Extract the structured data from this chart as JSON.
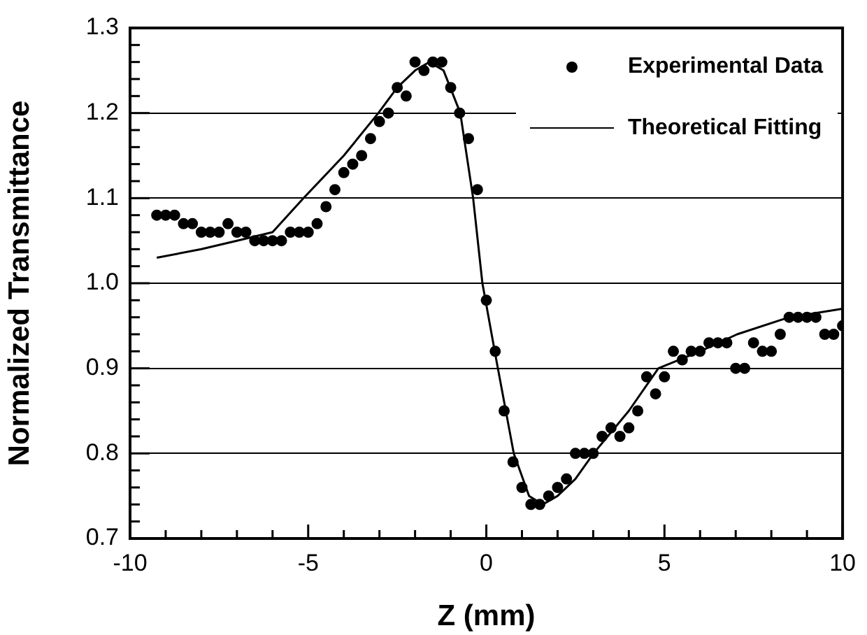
{
  "chart_data": {
    "type": "scatter",
    "xlabel": "Z (mm)",
    "ylabel": "Normalized Transmittance",
    "xlim": [
      -10,
      10
    ],
    "ylim": [
      0.7,
      1.3
    ],
    "xticks": [
      -10,
      {
        "value": -9,
        "label": null
      },
      {
        "value": -8,
        "label": null
      },
      {
        "value": -7,
        "label": null
      },
      {
        "value": -6,
        "label": null
      },
      -5,
      {
        "value": -4,
        "label": null
      },
      {
        "value": -3,
        "label": null
      },
      {
        "value": -2,
        "label": null
      },
      {
        "value": -1,
        "label": null
      },
      0,
      {
        "value": 1,
        "label": null
      },
      {
        "value": 2,
        "label": null
      },
      {
        "value": 3,
        "label": null
      },
      {
        "value": 4,
        "label": null
      },
      5,
      {
        "value": 6,
        "label": null
      },
      {
        "value": 7,
        "label": null
      },
      {
        "value": 8,
        "label": null
      },
      {
        "value": 9,
        "label": null
      },
      10
    ],
    "yticks": [
      {
        "value": 0.7,
        "label": "0.7"
      },
      {
        "value": 0.72,
        "label": null
      },
      {
        "value": 0.74,
        "label": null
      },
      {
        "value": 0.76,
        "label": null
      },
      {
        "value": 0.78,
        "label": null
      },
      {
        "value": 0.8,
        "label": "0.8"
      },
      {
        "value": 0.82,
        "label": null
      },
      {
        "value": 0.84,
        "label": null
      },
      {
        "value": 0.86,
        "label": null
      },
      {
        "value": 0.88,
        "label": null
      },
      {
        "value": 0.9,
        "label": "0.9"
      },
      {
        "value": 0.92,
        "label": null
      },
      {
        "value": 0.94,
        "label": null
      },
      {
        "value": 0.96,
        "label": null
      },
      {
        "value": 0.98,
        "label": null
      },
      {
        "value": 1.0,
        "label": "1.0"
      },
      {
        "value": 1.02,
        "label": null
      },
      {
        "value": 1.04,
        "label": null
      },
      {
        "value": 1.06,
        "label": null
      },
      {
        "value": 1.08,
        "label": null
      },
      {
        "value": 1.1,
        "label": "1.1"
      },
      {
        "value": 1.12,
        "label": null
      },
      {
        "value": 1.14,
        "label": null
      },
      {
        "value": 1.16,
        "label": null
      },
      {
        "value": 1.18,
        "label": null
      },
      {
        "value": 1.2,
        "label": "1.2"
      },
      {
        "value": 1.22,
        "label": null
      },
      {
        "value": 1.24,
        "label": null
      },
      {
        "value": 1.26,
        "label": null
      },
      {
        "value": 1.28,
        "label": null
      },
      {
        "value": 1.3,
        "label": "1.3"
      }
    ],
    "grid": "y",
    "legend": "top right",
    "series": [
      {
        "name": "Experimental Data",
        "type": "scatter",
        "marker": "circle",
        "color": "#000000",
        "x": [
          -9.25,
          -9,
          -8.75,
          -8.5,
          -8.25,
          -8,
          -7.75,
          -7.5,
          -7.25,
          -7,
          -6.75,
          -6.5,
          -6.25,
          -6,
          -5.75,
          -5.5,
          -5.25,
          -5,
          -4.75,
          -4.5,
          -4.25,
          -4,
          -3.75,
          -3.5,
          -3.25,
          -3,
          -2.75,
          -2.5,
          -2.25,
          -2,
          -1.75,
          -1.5,
          -1.25,
          -1,
          -0.75,
          -0.5,
          -0.25,
          0,
          0.25,
          0.5,
          0.75,
          1,
          1.25,
          1.5,
          1.75,
          2,
          2.25,
          2.5,
          2.75,
          3,
          3.25,
          3.5,
          3.75,
          4,
          4.25,
          4.5,
          4.75,
          5,
          5.25,
          5.5,
          5.75,
          6,
          6.25,
          6.5,
          6.75,
          7,
          7.25,
          7.5,
          7.75,
          8,
          8.25,
          8.5,
          8.75,
          9,
          9.25,
          9.5,
          9.75,
          10
        ],
        "values": [
          1.08,
          1.08,
          1.08,
          1.07,
          1.07,
          1.06,
          1.06,
          1.06,
          1.07,
          1.06,
          1.06,
          1.05,
          1.05,
          1.05,
          1.05,
          1.06,
          1.06,
          1.06,
          1.07,
          1.09,
          1.11,
          1.13,
          1.14,
          1.15,
          1.17,
          1.19,
          1.2,
          1.23,
          1.22,
          1.26,
          1.25,
          1.26,
          1.26,
          1.23,
          1.2,
          1.17,
          1.11,
          0.98,
          0.92,
          0.85,
          0.79,
          0.76,
          0.74,
          0.74,
          0.75,
          0.76,
          0.77,
          0.8,
          0.8,
          0.8,
          0.82,
          0.83,
          0.82,
          0.83,
          0.85,
          0.89,
          0.87,
          0.89,
          0.92,
          0.91,
          0.92,
          0.92,
          0.93,
          0.93,
          0.93,
          0.9,
          0.9,
          0.93,
          0.92,
          0.92,
          0.94,
          0.96,
          0.96,
          0.96,
          0.96,
          0.94,
          0.94,
          0.95
        ]
      },
      {
        "name": "Theoretical Fitting",
        "type": "line",
        "marker": "none",
        "line_style": "solid",
        "color": "#000000",
        "x": [
          -9.25,
          -8,
          -7,
          -6,
          -5.13,
          -4,
          -3.03,
          -2.5,
          -2,
          -1.6,
          -1.2,
          -0.73,
          -0.37,
          -0.11,
          0.28,
          0.77,
          1.2,
          1.58,
          2,
          2.5,
          3.01,
          4,
          4.83,
          6,
          7.04,
          8.5,
          10
        ],
        "values": [
          1.03,
          1.04,
          1.05,
          1.06,
          1.1,
          1.15,
          1.2,
          1.23,
          1.25,
          1.26,
          1.25,
          1.2,
          1.1,
          1.0,
          0.91,
          0.8,
          0.75,
          0.74,
          0.75,
          0.77,
          0.8,
          0.85,
          0.9,
          0.92,
          0.94,
          0.96,
          0.97
        ]
      }
    ]
  }
}
